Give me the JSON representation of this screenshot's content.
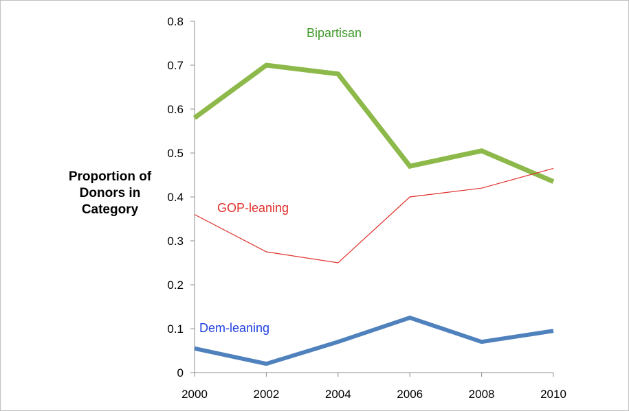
{
  "chart_data": {
    "type": "line",
    "title": "",
    "xlabel": "",
    "ylabel": "Proportion of\nDonors in\nCategory",
    "x": [
      2000,
      2002,
      2004,
      2006,
      2008,
      2010
    ],
    "xlim": [
      2000,
      2010
    ],
    "ylim": [
      0,
      0.8
    ],
    "xticks": [
      "2000",
      "2002",
      "2004",
      "2006",
      "2008",
      "2010"
    ],
    "yticks": [
      "0",
      "0.1",
      "0.2",
      "0.3",
      "0.4",
      "0.5",
      "0.6",
      "0.7",
      "0.8"
    ],
    "grid": false,
    "legend": "inline labels",
    "series": [
      {
        "name": "Bipartisan",
        "color": "#8db84a",
        "values": [
          0.58,
          0.7,
          0.68,
          0.47,
          0.505,
          0.435
        ]
      },
      {
        "name": "GOP-leaning",
        "color": "#e0302a",
        "values": [
          0.36,
          0.275,
          0.25,
          0.4,
          0.42,
          0.465
        ]
      },
      {
        "name": "Dem-leaning",
        "color": "#4f81bd",
        "values": [
          0.055,
          0.02,
          0.07,
          0.125,
          0.07,
          0.095
        ]
      }
    ],
    "series_label_colors": {
      "Bipartisan": "#3f9a2c",
      "GOP-leaning": "#e0302a",
      "Dem-leaning": "#1f3fe0"
    }
  }
}
